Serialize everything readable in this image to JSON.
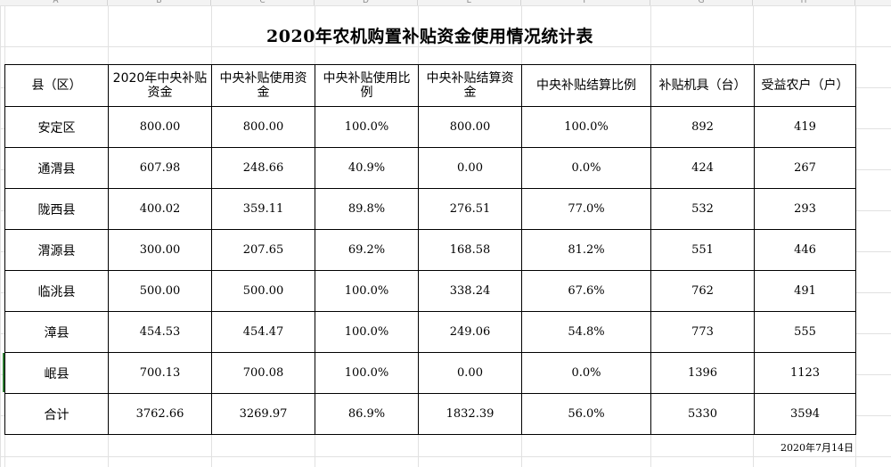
{
  "column_letters": [
    "A",
    "B",
    "C",
    "D",
    "E",
    "F",
    "G",
    "H"
  ],
  "title": "2020年农机购置补贴资金使用情况统计表",
  "headers": [
    "县（区）",
    "2020年中央补贴资金",
    "中央补贴使用资金",
    "中央补贴使用比例",
    "中央补贴结算资金",
    "中央补贴结算比例",
    "补贴机具（台）",
    "受益农户（户）"
  ],
  "rows": [
    [
      "安定区",
      "800.00",
      "800.00",
      "100.0%",
      "800.00",
      "100.0%",
      "892",
      "419"
    ],
    [
      "通渭县",
      "607.98",
      "248.66",
      "40.9%",
      "0.00",
      "0.0%",
      "424",
      "267"
    ],
    [
      "陇西县",
      "400.02",
      "359.11",
      "89.8%",
      "276.51",
      "77.0%",
      "532",
      "293"
    ],
    [
      "渭源县",
      "300.00",
      "207.65",
      "69.2%",
      "168.58",
      "81.2%",
      "551",
      "446"
    ],
    [
      "临洮县",
      "500.00",
      "500.00",
      "100.0%",
      "338.24",
      "67.6%",
      "762",
      "491"
    ],
    [
      "漳县",
      "454.53",
      "454.47",
      "100.0%",
      "249.06",
      "54.8%",
      "773",
      "555"
    ],
    [
      "岷县",
      "700.13",
      "700.08",
      "100.0%",
      "0.00",
      "0.0%",
      "1396",
      "1123"
    ],
    [
      "合计",
      "3762.66",
      "3269.97",
      "86.9%",
      "1832.39",
      "56.0%",
      "5330",
      "3594"
    ]
  ],
  "date": "2020年7月14日"
}
